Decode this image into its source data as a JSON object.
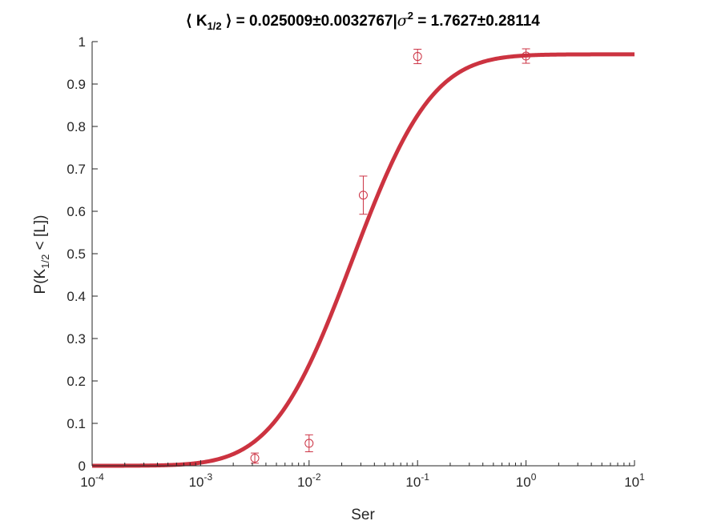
{
  "chart_data": {
    "type": "scatter",
    "title": {
      "part1": "⟨ K",
      "part1_sub": "1/2",
      "part2": " ⟩ = 0.025009±0.0032767|",
      "sigma": "σ",
      "sigma_sup": "2",
      "part3": " = 1.7627±0.28114"
    },
    "xlabel": "Ser",
    "ylabel": {
      "before": "P(K",
      "sub": "1/2",
      "after": " < [L])"
    },
    "x_scale": "log",
    "xlim": [
      0.0001,
      10
    ],
    "ylim": [
      0,
      1
    ],
    "x_ticks": [
      {
        "value": 0.0001,
        "base": "10",
        "exp": "-4"
      },
      {
        "value": 0.001,
        "base": "10",
        "exp": "-3"
      },
      {
        "value": 0.01,
        "base": "10",
        "exp": "-2"
      },
      {
        "value": 0.1,
        "base": "10",
        "exp": "-1"
      },
      {
        "value": 1,
        "base": "10",
        "exp": "0"
      },
      {
        "value": 10,
        "base": "10",
        "exp": "1"
      }
    ],
    "y_ticks": [
      {
        "value": 0,
        "label": "0"
      },
      {
        "value": 0.1,
        "label": "0.1"
      },
      {
        "value": 0.2,
        "label": "0.2"
      },
      {
        "value": 0.3,
        "label": "0.3"
      },
      {
        "value": 0.4,
        "label": "0.4"
      },
      {
        "value": 0.5,
        "label": "0.5"
      },
      {
        "value": 0.6,
        "label": "0.6"
      },
      {
        "value": 0.7,
        "label": "0.7"
      },
      {
        "value": 0.8,
        "label": "0.8"
      },
      {
        "value": 0.9,
        "label": "0.9"
      },
      {
        "value": 1,
        "label": "1"
      }
    ],
    "grid": false,
    "series": [
      {
        "kind": "errorbar",
        "color": "#cc3344",
        "points": [
          {
            "x": 0.00316,
            "y": 0.018,
            "err": 0.012
          },
          {
            "x": 0.01,
            "y": 0.053,
            "err": 0.02
          },
          {
            "x": 0.0316,
            "y": 0.638,
            "err": 0.045
          },
          {
            "x": 0.1,
            "y": 0.965,
            "err": 0.017
          },
          {
            "x": 1,
            "y": 0.966,
            "err": 0.017
          }
        ]
      },
      {
        "kind": "fit",
        "color": "#cc3340",
        "model": "log-normal CDF",
        "K_half": 0.025009,
        "sigma2": 1.7627,
        "amplitude": 0.97
      }
    ]
  }
}
